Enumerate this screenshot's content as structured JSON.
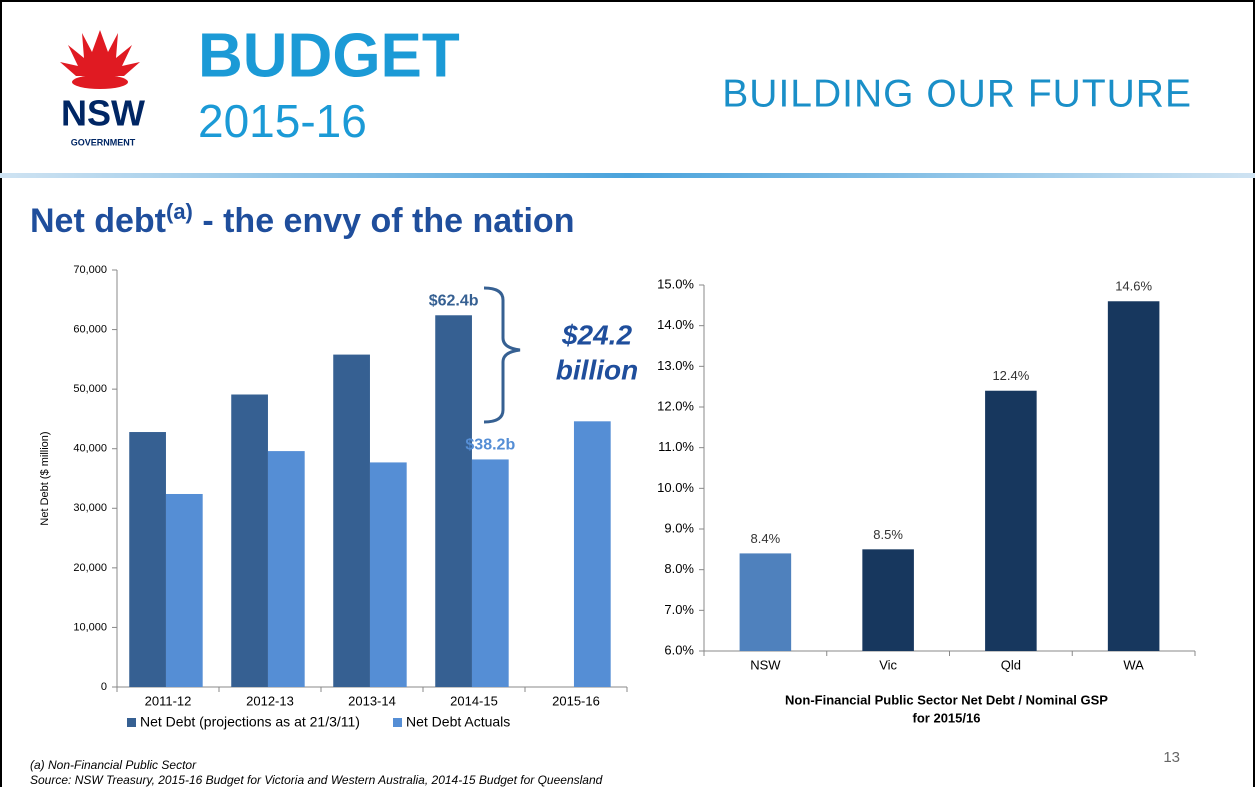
{
  "logo": {
    "nsw": "NSW",
    "government": "GOVERNMENT",
    "budget": "BUDGET",
    "year": "2015-16"
  },
  "tagline": "BUILDING OUR FUTURE",
  "title": {
    "main": "Net debt",
    "sup": "(a)",
    "rest": " - the envy of the nation"
  },
  "footnotes": [
    "(a) Non-Financial Public Sector",
    "Source: NSW Treasury, 2015-16 Budget for Victoria and Western Australia, 2014-15 Budget for Queensland"
  ],
  "page_number": "13",
  "chart_data": [
    {
      "type": "bar",
      "ylabel": "Net Debt ($ million)",
      "categories": [
        "2011-12",
        "2012-13",
        "2013-14",
        "2014-15",
        "2015-16"
      ],
      "series": [
        {
          "name": "Net Debt (projections as at 21/3/11)",
          "color": "#366092",
          "values": [
            42800,
            49100,
            55800,
            62400,
            null
          ],
          "value_labels": [
            null,
            null,
            null,
            "$62.4b",
            null
          ]
        },
        {
          "name": "Net Debt Actuals",
          "color": "#558ed5",
          "values": [
            32400,
            39600,
            37700,
            38200,
            44600
          ],
          "value_labels": [
            null,
            null,
            null,
            "$38.2b",
            null
          ]
        }
      ],
      "annotation": [
        "$24.2",
        "billion"
      ],
      "ylim": [
        0,
        70000
      ],
      "yticks": [
        0,
        {
          "value": 10000,
          "label": "10,000"
        },
        {
          "value": 20000,
          "label": "20,000"
        },
        {
          "value": 30000,
          "label": "30,000"
        },
        {
          "value": 40000,
          "label": "40,000"
        },
        {
          "value": 50000,
          "label": "50,000"
        },
        {
          "value": 60000,
          "label": "60,000"
        },
        {
          "value": 70000,
          "label": "70,000"
        }
      ],
      "grid": false,
      "legend": "bottom"
    },
    {
      "type": "bar",
      "xlabel": [
        "Non-Financial Public Sector Net Debt / Nominal GSP",
        "for 2015/16"
      ],
      "categories": [
        "NSW",
        "Vic",
        "Qld",
        "WA"
      ],
      "values": [
        8.4,
        8.5,
        12.4,
        14.6
      ],
      "value_labels": [
        "8.4%",
        "8.5%",
        "12.4%",
        "14.6%"
      ],
      "colors": [
        "#4f81bd",
        "#17375e",
        "#17375e",
        "#17375e"
      ],
      "ylim": [
        6,
        15
      ],
      "yticks": [
        {
          "value": 6,
          "label": "6.0%"
        },
        {
          "value": 7,
          "label": "7.0%"
        },
        {
          "value": 8,
          "label": "8.0%"
        },
        {
          "value": 9,
          "label": "9.0%"
        },
        {
          "value": 10,
          "label": "10.0%"
        },
        {
          "value": 11,
          "label": "11.0%"
        },
        {
          "value": 12,
          "label": "12.0%"
        },
        {
          "value": 13,
          "label": "13.0%"
        },
        {
          "value": 14,
          "label": "14.0%"
        },
        {
          "value": 15,
          "label": "15.0%"
        }
      ],
      "grid": false
    }
  ]
}
